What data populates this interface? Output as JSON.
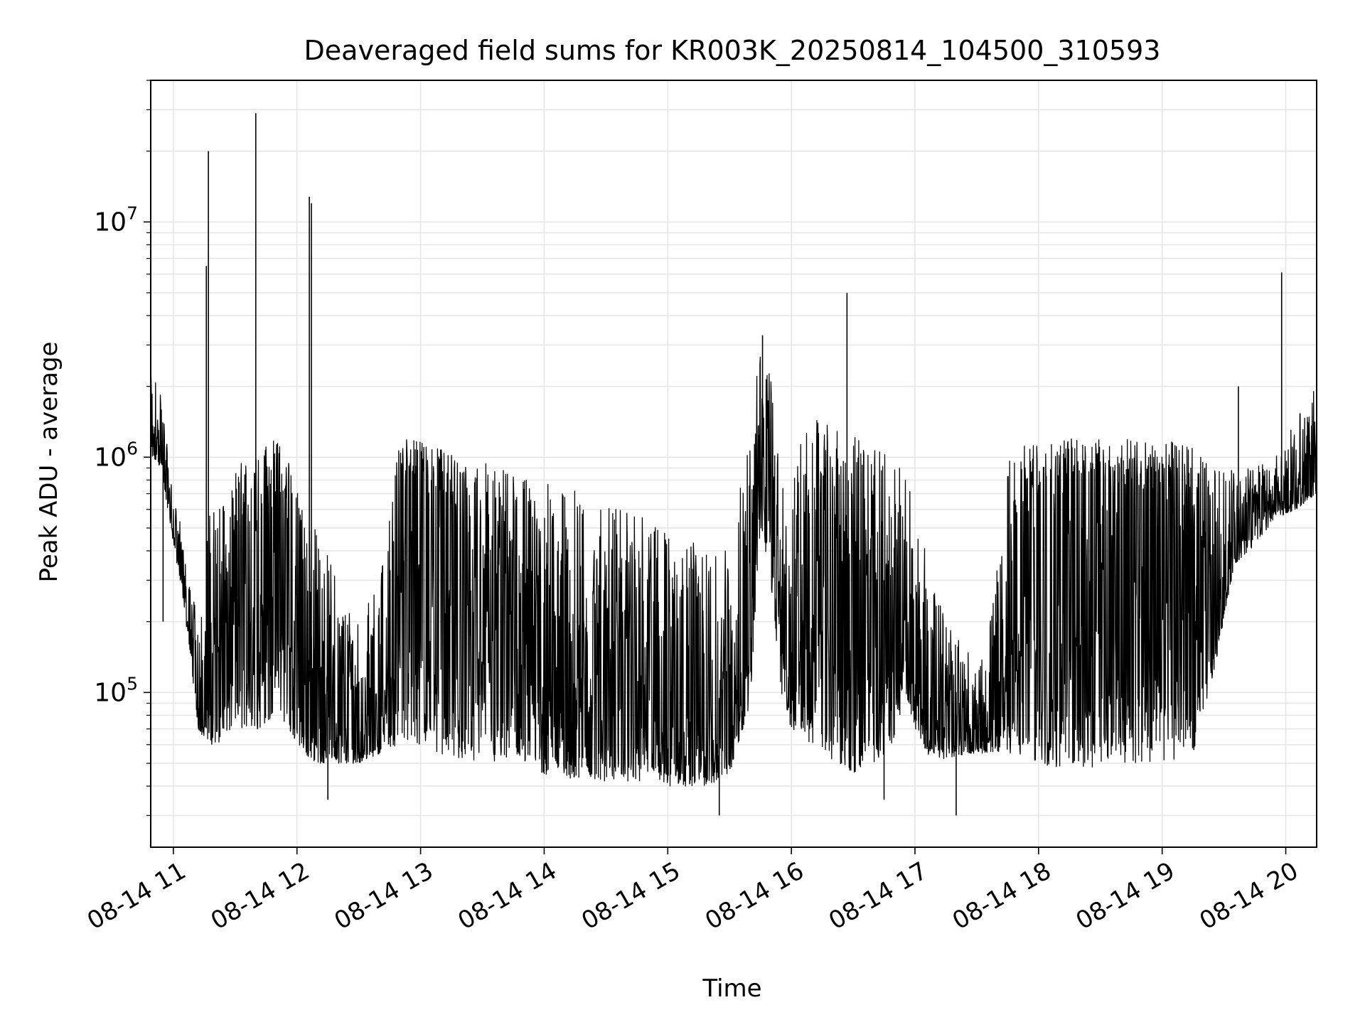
{
  "chart_data": {
    "type": "line",
    "title": "Deaveraged field sums for KR003K_20250814_104500_310593",
    "xlabel": "Time",
    "ylabel": "Peak ADU - average",
    "y_scale": "log",
    "ylim": [
      22000,
      40000000
    ],
    "xlim": [
      "2025-08-14 10:49",
      "2025-08-14 20:15"
    ],
    "grid": "major and minor",
    "line_color": "#000000",
    "x_tick_labels": [
      "08-14 11",
      "08-14 12",
      "08-14 13",
      "08-14 14",
      "08-14 15",
      "08-14 16",
      "08-14 17",
      "08-14 18",
      "08-14 19",
      "08-14 20"
    ],
    "y_tick_labels": [
      {
        "base": "10",
        "exp": "5"
      },
      {
        "base": "10",
        "exp": "6"
      },
      {
        "base": "10",
        "exp": "7"
      }
    ],
    "series": [
      {
        "x": [
          "2025-08-14 10:49",
          "2025-08-14 10:54",
          "2025-08-14 10:58",
          "2025-08-14 11:03",
          "2025-08-14 11:08",
          "2025-08-14 11:12",
          "2025-08-14 11:17",
          "2025-08-14 11:22",
          "2025-08-14 11:28",
          "2025-08-14 11:35",
          "2025-08-14 11:42",
          "2025-08-14 11:49",
          "2025-08-14 11:56",
          "2025-08-14 12:03",
          "2025-08-14 12:10",
          "2025-08-14 12:20",
          "2025-08-14 12:30",
          "2025-08-14 12:40",
          "2025-08-14 12:50",
          "2025-08-14 13:00",
          "2025-08-14 13:10",
          "2025-08-14 13:20",
          "2025-08-14 13:30",
          "2025-08-14 13:40",
          "2025-08-14 13:50",
          "2025-08-14 14:00",
          "2025-08-14 14:10",
          "2025-08-14 14:20",
          "2025-08-14 14:30",
          "2025-08-14 14:40",
          "2025-08-14 14:50",
          "2025-08-14 15:00",
          "2025-08-14 15:10",
          "2025-08-14 15:20",
          "2025-08-14 15:30",
          "2025-08-14 15:40",
          "2025-08-14 15:45",
          "2025-08-14 15:50",
          "2025-08-14 15:55",
          "2025-08-14 16:00",
          "2025-08-14 16:10",
          "2025-08-14 16:20",
          "2025-08-14 16:30",
          "2025-08-14 16:40",
          "2025-08-14 16:50",
          "2025-08-14 16:55",
          "2025-08-14 17:00",
          "2025-08-14 17:05",
          "2025-08-14 17:15",
          "2025-08-14 17:25",
          "2025-08-14 17:35",
          "2025-08-14 17:45",
          "2025-08-14 17:55",
          "2025-08-14 18:05",
          "2025-08-14 18:15",
          "2025-08-14 18:30",
          "2025-08-14 18:45",
          "2025-08-14 19:00",
          "2025-08-14 19:15",
          "2025-08-14 19:25",
          "2025-08-14 19:35",
          "2025-08-14 19:45",
          "2025-08-14 19:55",
          "2025-08-14 20:05",
          "2025-08-14 20:15"
        ],
        "y": [
          1200000,
          1100000,
          650000,
          400000,
          200000,
          100000,
          120000,
          150000,
          300000,
          450000,
          500000,
          600000,
          450000,
          120000,
          100000,
          90000,
          70000,
          90000,
          700000,
          900000,
          700000,
          500000,
          400000,
          300000,
          250000,
          220000,
          180000,
          150000,
          140000,
          150000,
          140000,
          130000,
          120000,
          100000,
          90000,
          350000,
          1800000,
          800000,
          200000,
          160000,
          700000,
          500000,
          250000,
          300000,
          300000,
          350000,
          200000,
          90000,
          80000,
          80000,
          75000,
          300000,
          700000,
          800000,
          850000,
          800000,
          750000,
          700000,
          400000,
          250000,
          400000,
          650000,
          700000,
          800000,
          1100000
        ],
        "low": [
          1000000,
          900000,
          550000,
          300000,
          150000,
          70000,
          60000,
          60000,
          70000,
          70000,
          70000,
          80000,
          70000,
          55000,
          50000,
          50000,
          50000,
          55000,
          60000,
          60000,
          55000,
          50000,
          50000,
          48000,
          46000,
          45000,
          43000,
          43000,
          42000,
          42000,
          42000,
          40000,
          40000,
          40000,
          45000,
          90000,
          500000,
          300000,
          100000,
          70000,
          60000,
          50000,
          45000,
          50000,
          60000,
          100000,
          70000,
          55000,
          52000,
          55000,
          55000,
          55000,
          50000,
          48000,
          48000,
          48000,
          50000,
          50000,
          55000,
          120000,
          350000,
          420000,
          550000,
          600000,
          700000
        ],
        "high": [
          2200000,
          2000000,
          900000,
          550000,
          300000,
          200000,
          600000,
          700000,
          900000,
          1000000,
          1100000,
          1200000,
          1100000,
          600000,
          500000,
          300000,
          200000,
          300000,
          1200000,
          1200000,
          1100000,
          1000000,
          950000,
          900000,
          850000,
          800000,
          750000,
          700000,
          650000,
          600000,
          550000,
          500000,
          450000,
          400000,
          400000,
          1500000,
          3000000,
          2200000,
          800000,
          900000,
          1500000,
          1400000,
          1300000,
          1100000,
          1000000,
          850000,
          650000,
          400000,
          200000,
          150000,
          150000,
          1100000,
          1200000,
          1200000,
          1200000,
          1200000,
          1200000,
          1200000,
          1100000,
          900000,
          900000,
          900000,
          1000000,
          1500000,
          2000000
        ]
      }
    ],
    "spikes": [
      {
        "x": "2025-08-14 10:55",
        "y": 200000
      },
      {
        "x": "2025-08-14 11:16",
        "y": 6500000
      },
      {
        "x": "2025-08-14 11:17",
        "y": 20000000
      },
      {
        "x": "2025-08-14 11:40",
        "y": 29000000
      },
      {
        "x": "2025-08-14 12:06",
        "y": 12800000
      },
      {
        "x": "2025-08-14 12:07",
        "y": 12000000
      },
      {
        "x": "2025-08-14 12:15",
        "y": 35000
      },
      {
        "x": "2025-08-14 15:25",
        "y": 30000
      },
      {
        "x": "2025-08-14 15:46",
        "y": 3300000
      },
      {
        "x": "2025-08-14 16:27",
        "y": 5000000
      },
      {
        "x": "2025-08-14 16:45",
        "y": 35000
      },
      {
        "x": "2025-08-14 17:20",
        "y": 30000
      },
      {
        "x": "2025-08-14 19:37",
        "y": 2000000
      },
      {
        "x": "2025-08-14 19:58",
        "y": 6100000
      }
    ]
  }
}
